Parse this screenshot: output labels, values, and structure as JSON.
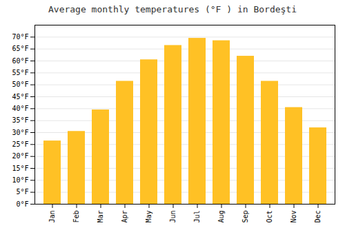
{
  "chart_data": {
    "type": "bar",
    "title": "Average monthly temperatures (°F ) in Bordeşti",
    "categories": [
      "Jan",
      "Feb",
      "Mar",
      "Apr",
      "May",
      "Jun",
      "Jul",
      "Aug",
      "Sep",
      "Oct",
      "Nov",
      "Dec"
    ],
    "values": [
      26.5,
      30.5,
      39.5,
      51.5,
      60.5,
      66.5,
      69.5,
      68.5,
      62.0,
      51.5,
      40.5,
      32.0
    ],
    "color": "#FFC125",
    "ylim": [
      0,
      75
    ],
    "yticks": [
      {
        "value": 0,
        "label": "0°F"
      },
      {
        "value": 5,
        "label": "5°F"
      },
      {
        "value": 10,
        "label": "10°F"
      },
      {
        "value": 15,
        "label": "15°F"
      },
      {
        "value": 20,
        "label": "20°F"
      },
      {
        "value": 25,
        "label": "25°F"
      },
      {
        "value": 30,
        "label": "30°F"
      },
      {
        "value": 35,
        "label": "35°F"
      },
      {
        "value": 40,
        "label": "40°F"
      },
      {
        "value": 45,
        "label": "45°F"
      },
      {
        "value": 50,
        "label": "50°F"
      },
      {
        "value": 55,
        "label": "55°F"
      },
      {
        "value": 60,
        "label": "60°F"
      },
      {
        "value": 65,
        "label": "65°F"
      },
      {
        "value": 70,
        "label": "70°F"
      }
    ],
    "grid": true
  }
}
